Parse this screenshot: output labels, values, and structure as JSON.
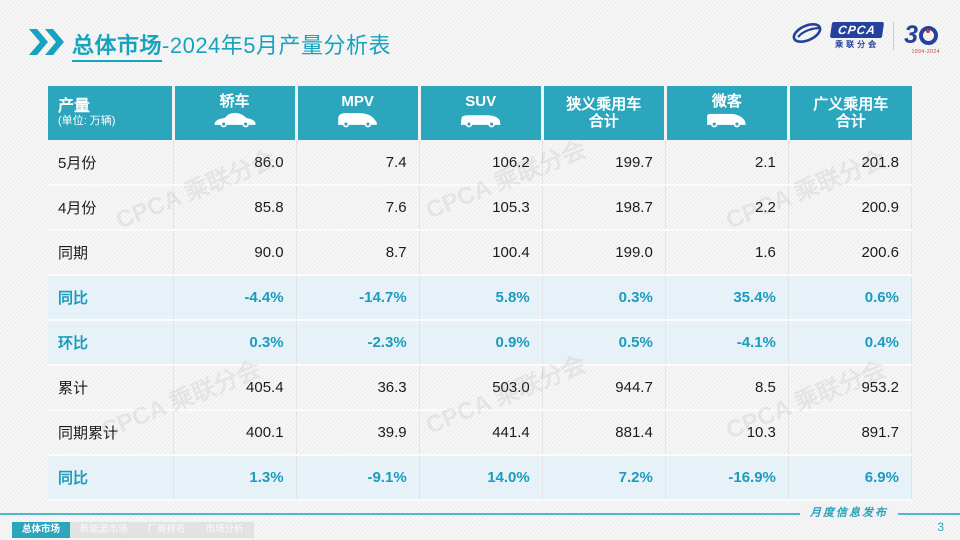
{
  "title": {
    "highlight": "总体市场",
    "rest": "-2024年5月产量分析表"
  },
  "logo": {
    "wordmark": "CPCA",
    "association": "乘联分会",
    "anniversary_3": "3",
    "anniversary_years": "1994-2024"
  },
  "watermark": "CPCA 乘联分会",
  "table": {
    "corner": {
      "title": "产量",
      "subtitle": "(单位: 万辆)"
    },
    "columns": [
      {
        "label": "轿车",
        "icon": "sedan-icon"
      },
      {
        "label": "MPV",
        "icon": "mpv-icon"
      },
      {
        "label": "SUV",
        "icon": "suv-icon"
      },
      {
        "label": "狭义乘用车",
        "sublabel": "合计",
        "icon": null
      },
      {
        "label": "微客",
        "icon": "van-icon"
      },
      {
        "label": "广义乘用车",
        "sublabel": "合计",
        "icon": null
      }
    ],
    "rows": [
      {
        "label": "5月份",
        "type": "normal",
        "values": [
          "86.0",
          "7.4",
          "106.2",
          "199.7",
          "2.1",
          "201.8"
        ]
      },
      {
        "label": "4月份",
        "type": "normal",
        "values": [
          "85.8",
          "7.6",
          "105.3",
          "198.7",
          "2.2",
          "200.9"
        ]
      },
      {
        "label": "同期",
        "type": "normal",
        "values": [
          "90.0",
          "8.7",
          "100.4",
          "199.0",
          "1.6",
          "200.6"
        ]
      },
      {
        "label": "同比",
        "type": "percent",
        "values": [
          "-4.4%",
          "-14.7%",
          "5.8%",
          "0.3%",
          "35.4%",
          "0.6%"
        ]
      },
      {
        "label": "环比",
        "type": "percent",
        "values": [
          "0.3%",
          "-2.3%",
          "0.9%",
          "0.5%",
          "-4.1%",
          "0.4%"
        ]
      },
      {
        "label": "累计",
        "type": "normal",
        "values": [
          "405.4",
          "36.3",
          "503.0",
          "944.7",
          "8.5",
          "953.2"
        ]
      },
      {
        "label": "同期累计",
        "type": "normal",
        "values": [
          "400.1",
          "39.9",
          "441.4",
          "881.4",
          "10.3",
          "891.7"
        ]
      },
      {
        "label": "同比",
        "type": "percent",
        "values": [
          "1.3%",
          "-9.1%",
          "14.0%",
          "7.2%",
          "-16.9%",
          "6.9%"
        ]
      }
    ]
  },
  "footer": {
    "tabs": [
      {
        "label": "总体市场",
        "active": true
      },
      {
        "label": "新能源市场",
        "active": false
      },
      {
        "label": "厂商排名",
        "active": false
      },
      {
        "label": "市场分析",
        "active": false
      }
    ],
    "publication": "月度信息发布",
    "page_number": "3"
  },
  "colors": {
    "accent": "#17A3BF",
    "table_header_bg": "#2BA6BD",
    "percent_row_bg": "#E7F2F8",
    "percent_text": "#1B9CBE",
    "logo_blue": "#24419B",
    "logo_red": "#D6372C"
  }
}
